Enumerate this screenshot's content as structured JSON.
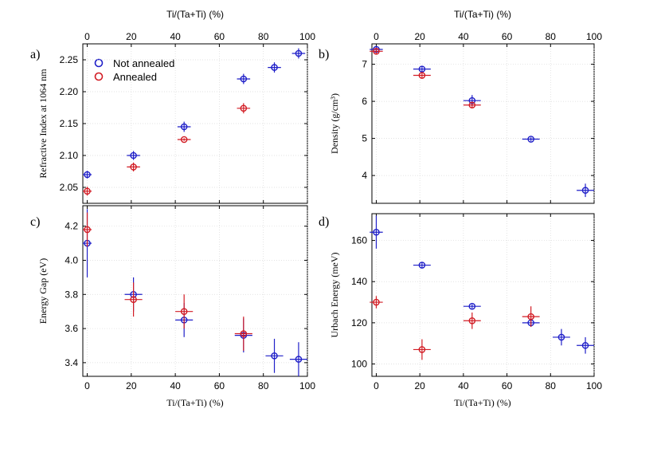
{
  "colors": {
    "not_annealed": "#1f1fc8",
    "annealed": "#d21c24",
    "grid": "#d9d9d9"
  },
  "shared": {
    "top_xlabel": "Ti/(Ta+Ti) (%)",
    "bottom_xlabel": "Ti/(Ta+Ti) (%)",
    "xticks": [
      "0",
      "20",
      "40",
      "60",
      "80",
      "100"
    ]
  },
  "legend": {
    "not_annealed": "Not annealed",
    "annealed": "Annealed"
  },
  "chart_data": [
    {
      "type": "scatter",
      "panel": "a)",
      "ylabel": "Refractive Index at 1064 nm",
      "xlim": [
        -2,
        100
      ],
      "ylim": [
        2.025,
        2.275
      ],
      "yticks": [
        "2.05",
        "2.10",
        "2.15",
        "2.20",
        "2.25"
      ],
      "series": [
        {
          "name": "Not annealed",
          "color_key": "not_annealed",
          "points": [
            {
              "x": 0,
              "y": 2.07,
              "xerr": 2,
              "yerr": 0.006
            },
            {
              "x": 21,
              "y": 2.1,
              "xerr": 3,
              "yerr": 0.007
            },
            {
              "x": 44,
              "y": 2.145,
              "xerr": 3,
              "yerr": 0.008
            },
            {
              "x": 71,
              "y": 2.22,
              "xerr": 3,
              "yerr": 0.008
            },
            {
              "x": 85,
              "y": 2.238,
              "xerr": 3,
              "yerr": 0.008
            },
            {
              "x": 96,
              "y": 2.26,
              "xerr": 3,
              "yerr": 0.008
            }
          ]
        },
        {
          "name": "Annealed",
          "color_key": "annealed",
          "points": [
            {
              "x": 0,
              "y": 2.044,
              "xerr": 2,
              "yerr": 0.007
            },
            {
              "x": 21,
              "y": 2.082,
              "xerr": 3,
              "yerr": 0.007
            },
            {
              "x": 44,
              "y": 2.125,
              "xerr": 3,
              "yerr": 0.002
            },
            {
              "x": 71,
              "y": 2.174,
              "xerr": 3,
              "yerr": 0.008
            }
          ]
        }
      ]
    },
    {
      "type": "scatter",
      "panel": "b)",
      "ylabel": "Density (g/cm³)",
      "xlim": [
        -2,
        100
      ],
      "ylim": [
        3.25,
        7.55
      ],
      "yticks": [
        "4",
        "5",
        "6",
        "7"
      ],
      "series": [
        {
          "name": "Not annealed",
          "color_key": "not_annealed",
          "points": [
            {
              "x": 0,
              "y": 7.4,
              "xerr": 3,
              "yerr": 0.08
            },
            {
              "x": 21,
              "y": 6.87,
              "xerr": 4,
              "yerr": 0.08
            },
            {
              "x": 44,
              "y": 6.02,
              "xerr": 4,
              "yerr": 0.15
            },
            {
              "x": 71,
              "y": 4.98,
              "xerr": 4,
              "yerr": 0.05
            },
            {
              "x": 96,
              "y": 3.6,
              "xerr": 4,
              "yerr": 0.18
            }
          ]
        },
        {
          "name": "Annealed",
          "color_key": "annealed",
          "points": [
            {
              "x": 0,
              "y": 7.35,
              "xerr": 3,
              "yerr": 0.08
            },
            {
              "x": 21,
              "y": 6.7,
              "xerr": 4,
              "yerr": 0.08
            },
            {
              "x": 44,
              "y": 5.9,
              "xerr": 4,
              "yerr": 0.08
            }
          ]
        }
      ]
    },
    {
      "type": "scatter",
      "panel": "c)",
      "ylabel": "Energy Gap (eV)",
      "xlim": [
        -2,
        100
      ],
      "ylim": [
        3.32,
        4.32
      ],
      "yticks": [
        "3.4",
        "3.6",
        "3.8",
        "4.0",
        "4.2"
      ],
      "series": [
        {
          "name": "Not annealed",
          "color_key": "not_annealed",
          "points": [
            {
              "x": 0,
              "y": 4.1,
              "xerr": 2,
              "yerr": 0.2
            },
            {
              "x": 21,
              "y": 3.8,
              "xerr": 4,
              "yerr": 0.1
            },
            {
              "x": 44,
              "y": 3.65,
              "xerr": 4,
              "yerr": 0.1
            },
            {
              "x": 71,
              "y": 3.56,
              "xerr": 4,
              "yerr": 0.1
            },
            {
              "x": 85,
              "y": 3.44,
              "xerr": 4,
              "yerr": 0.1
            },
            {
              "x": 96,
              "y": 3.42,
              "xerr": 4,
              "yerr": 0.1
            }
          ]
        },
        {
          "name": "Annealed",
          "color_key": "annealed",
          "points": [
            {
              "x": 0,
              "y": 4.18,
              "xerr": 2,
              "yerr": 0.1
            },
            {
              "x": 21,
              "y": 3.77,
              "xerr": 4,
              "yerr": 0.1
            },
            {
              "x": 44,
              "y": 3.7,
              "xerr": 4,
              "yerr": 0.1
            },
            {
              "x": 71,
              "y": 3.57,
              "xerr": 4,
              "yerr": 0.1
            }
          ]
        }
      ]
    },
    {
      "type": "scatter",
      "panel": "d)",
      "ylabel": "Urbach Energy (meV)",
      "xlim": [
        -2,
        100
      ],
      "ylim": [
        94,
        173
      ],
      "yticks": [
        "100",
        "120",
        "140",
        "160"
      ],
      "series": [
        {
          "name": "Not annealed",
          "color_key": "not_annealed",
          "points": [
            {
              "x": 0,
              "y": 164,
              "xerr": 3,
              "yerr": 8
            },
            {
              "x": 21,
              "y": 148,
              "xerr": 4,
              "yerr": 1.5
            },
            {
              "x": 44,
              "y": 128,
              "xerr": 4,
              "yerr": 1
            },
            {
              "x": 71,
              "y": 120,
              "xerr": 4,
              "yerr": 2
            },
            {
              "x": 85,
              "y": 113,
              "xerr": 4,
              "yerr": 4
            },
            {
              "x": 96,
              "y": 109,
              "xerr": 4,
              "yerr": 4
            }
          ]
        },
        {
          "name": "Annealed",
          "color_key": "annealed",
          "points": [
            {
              "x": 0,
              "y": 130,
              "xerr": 3,
              "yerr": 3
            },
            {
              "x": 21,
              "y": 107,
              "xerr": 4,
              "yerr": 5
            },
            {
              "x": 44,
              "y": 121,
              "xerr": 4,
              "yerr": 4
            },
            {
              "x": 71,
              "y": 123,
              "xerr": 4,
              "yerr": 5
            }
          ]
        }
      ]
    }
  ]
}
